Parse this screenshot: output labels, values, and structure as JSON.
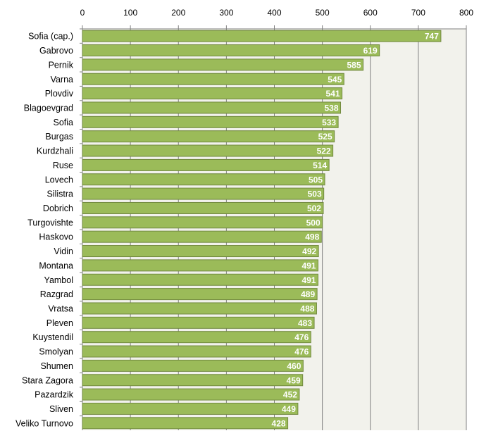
{
  "chart_data": {
    "type": "bar",
    "orientation": "horizontal",
    "title": "",
    "xlabel": "",
    "ylabel": "",
    "xlim": [
      0,
      800
    ],
    "x_ticks": [
      0,
      100,
      200,
      300,
      400,
      500,
      600,
      700,
      800
    ],
    "x_axis_position": "top",
    "grid": true,
    "legend": "none",
    "categories": [
      "Sofia (cap.)",
      "Gabrovo",
      "Pernik",
      "Varna",
      "Plovdiv",
      "Blagoevgrad",
      "Sofia",
      "Burgas",
      "Kurdzhali",
      "Ruse",
      "Lovech",
      "Silistra",
      "Dobrich",
      "Turgovishte",
      "Haskovo",
      "Vidin",
      "Montana",
      "Yambol",
      "Razgrad",
      "Vratsa",
      "Pleven",
      "Kuystendil",
      "Smolyan",
      "Shumen",
      "Stara Zagora",
      "Pazardzik",
      "Sliven",
      "Veliko Turnovo"
    ],
    "values": [
      747,
      619,
      585,
      545,
      541,
      538,
      533,
      525,
      522,
      514,
      505,
      503,
      502,
      500,
      498,
      492,
      491,
      491,
      489,
      488,
      483,
      476,
      476,
      460,
      459,
      452,
      449,
      428
    ],
    "colors": {
      "bar_fill": "#9bbb59",
      "bar_stroke": "#71893f",
      "plot_background": "#f2f2ec",
      "gridline": "#808080",
      "data_label": "#ffffff"
    }
  }
}
